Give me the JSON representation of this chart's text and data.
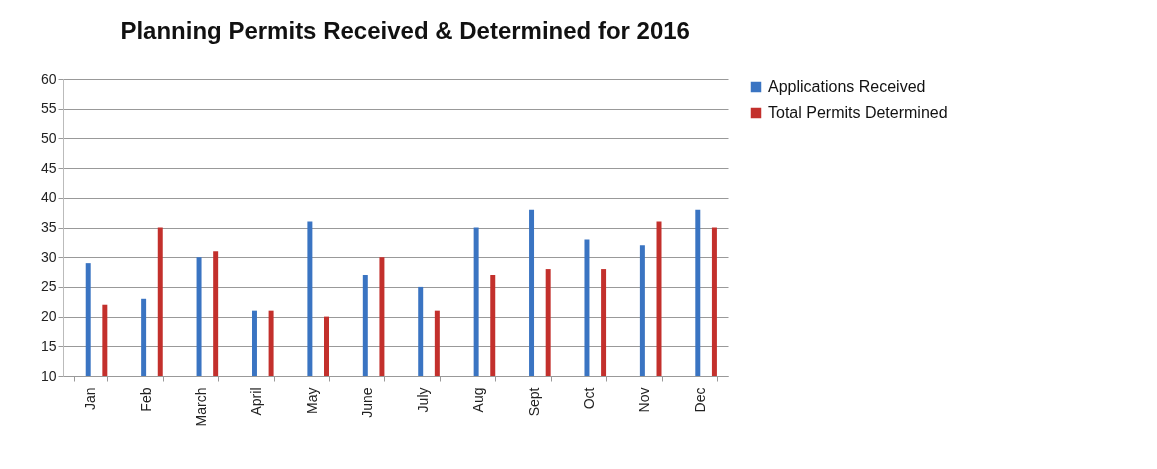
{
  "chart_data": {
    "type": "bar",
    "title": "Planning Permits Received & Determined for 2016",
    "categories": [
      "Jan",
      "Feb",
      "March",
      "April",
      "May",
      "June",
      "July",
      "Aug",
      "Sept",
      "Oct",
      "Nov",
      "Dec"
    ],
    "series": [
      {
        "name": "Applications Received",
        "color": "#3a74c2",
        "values": [
          29,
          23,
          30,
          21,
          36,
          27,
          25,
          35,
          38,
          33,
          32,
          38
        ]
      },
      {
        "name": "Total Permits Determined",
        "color": "#c3302c",
        "values": [
          22,
          35,
          31,
          21,
          20,
          30,
          21,
          27,
          28,
          28,
          36,
          35
        ]
      }
    ],
    "ylim": [
      10,
      60
    ],
    "yticks": [
      10,
      15,
      20,
      25,
      30,
      35,
      40,
      45,
      50,
      55,
      60
    ],
    "grid": "y",
    "legend": "right"
  }
}
